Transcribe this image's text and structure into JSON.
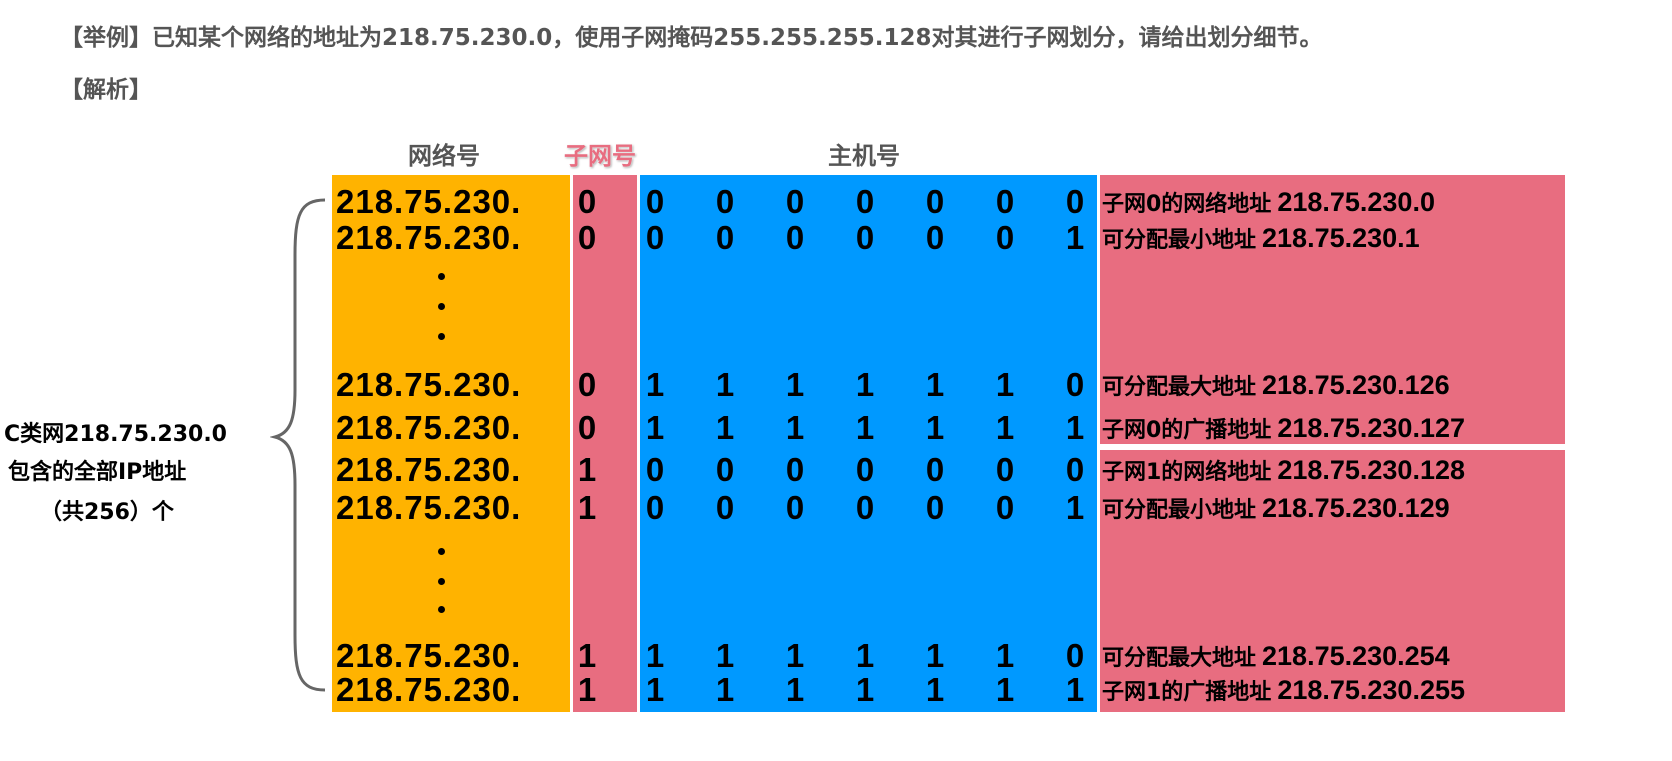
{
  "header": {
    "question": "【举例】已知某个网络的地址为218.75.230.0，使用子网掩码255.255.255.128对其进行子网划分，请给出划分细节。",
    "analysis": "【解析】"
  },
  "columns": {
    "network": "网络号",
    "subnet": "子网号",
    "host": "主机号"
  },
  "left_note": {
    "line1": "C类网218.75.230.0",
    "line2": "包含的全部IP地址",
    "line3": "（共256）个"
  },
  "colors": {
    "network": "#FFB300",
    "subnet": "#E86D80",
    "host": "#0099FF",
    "description": "#E86D80"
  },
  "rows": [
    {
      "prefix": "218.75.230.",
      "subnet_bit": "0",
      "host_bits": [
        "0",
        "0",
        "0",
        "0",
        "0",
        "0",
        "0"
      ],
      "label": "子网0的网络地址",
      "address": "218.75.230.0"
    },
    {
      "prefix": "218.75.230.",
      "subnet_bit": "0",
      "host_bits": [
        "0",
        "0",
        "0",
        "0",
        "0",
        "0",
        "1"
      ],
      "label": "可分配最小地址",
      "address": "218.75.230.1"
    },
    {
      "prefix": "218.75.230.",
      "subnet_bit": "0",
      "host_bits": [
        "1",
        "1",
        "1",
        "1",
        "1",
        "1",
        "0"
      ],
      "label": "可分配最大地址",
      "address": "218.75.230.126"
    },
    {
      "prefix": "218.75.230.",
      "subnet_bit": "0",
      "host_bits": [
        "1",
        "1",
        "1",
        "1",
        "1",
        "1",
        "1"
      ],
      "label": "子网0的广播地址",
      "address": "218.75.230.127"
    },
    {
      "prefix": "218.75.230.",
      "subnet_bit": "1",
      "host_bits": [
        "0",
        "0",
        "0",
        "0",
        "0",
        "0",
        "0"
      ],
      "label": "子网1的网络地址",
      "address": "218.75.230.128"
    },
    {
      "prefix": "218.75.230.",
      "subnet_bit": "1",
      "host_bits": [
        "0",
        "0",
        "0",
        "0",
        "0",
        "0",
        "1"
      ],
      "label": "可分配最小地址",
      "address": "218.75.230.129"
    },
    {
      "prefix": "218.75.230.",
      "subnet_bit": "1",
      "host_bits": [
        "1",
        "1",
        "1",
        "1",
        "1",
        "1",
        "0"
      ],
      "label": "可分配最大地址",
      "address": "218.75.230.254"
    },
    {
      "prefix": "218.75.230.",
      "subnet_bit": "1",
      "host_bits": [
        "1",
        "1",
        "1",
        "1",
        "1",
        "1",
        "1"
      ],
      "label": "子网1的广播地址",
      "address": "218.75.230.255"
    }
  ]
}
